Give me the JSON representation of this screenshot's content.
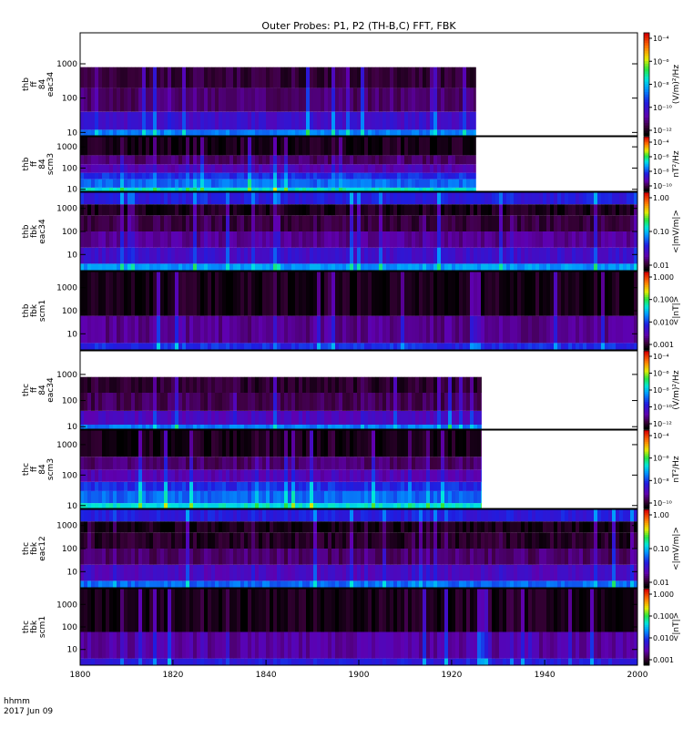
{
  "title": "Outer Probes: P1, P2 (TH-B,C) FFT, FBK",
  "time_axis": {
    "tick_labels": [
      "1800",
      "1820",
      "1840",
      "1900",
      "1920",
      "1940",
      "2000"
    ],
    "tick_hours": [
      18.0,
      18.333,
      18.667,
      19.0,
      19.333,
      19.667,
      20.0
    ],
    "range_hours": [
      18.0,
      20.0
    ],
    "unit_label": "hhmm",
    "date_label": "2017 Jun 09"
  },
  "chart_data": [
    {
      "type": "heatmap",
      "panel": "thb_ff_eac34",
      "ylabel": [
        "thb",
        "ff",
        "84",
        "eac34"
      ],
      "yscale": "log",
      "ylim": [
        8,
        8000
      ],
      "y_ticks": [
        10,
        100,
        1000
      ],
      "y_tick_labels": [
        "10",
        "100",
        "1000"
      ],
      "data_end_hour": 19.42,
      "bands": [
        {
          "f": [
            8,
            12
          ],
          "lvl": 0.42
        },
        {
          "f": [
            12,
            40
          ],
          "lvl": 0.25
        },
        {
          "f": [
            40,
            200
          ],
          "lvl": 0.12
        },
        {
          "f": [
            200,
            800
          ],
          "lvl": 0.07
        }
      ],
      "colorbar": {
        "label": "(V/m)²/Hz",
        "tick_labels": [
          "10⁻⁴",
          "10⁻⁶",
          "10⁻⁸",
          "10⁻¹⁰",
          "10⁻¹²"
        ]
      }
    },
    {
      "type": "heatmap",
      "panel": "thb_ff_scm3",
      "ylabel": [
        "thb",
        "ff",
        "84",
        "scm3"
      ],
      "yscale": "log",
      "ylim": [
        8,
        3000
      ],
      "y_ticks": [
        10,
        100,
        1000
      ],
      "y_tick_labels": [
        "10",
        "100",
        "1000"
      ],
      "data_end_hour": 19.42,
      "bands": [
        {
          "f": [
            8,
            12
          ],
          "lvl": 0.55
        },
        {
          "f": [
            12,
            30
          ],
          "lvl": 0.4
        },
        {
          "f": [
            30,
            60
          ],
          "lvl": 0.33
        },
        {
          "f": [
            60,
            150
          ],
          "lvl": 0.2
        },
        {
          "f": [
            150,
            400
          ],
          "lvl": 0.12
        },
        {
          "f": [
            400,
            3000
          ],
          "lvl": 0.03
        }
      ],
      "colorbar": {
        "label": "nT²/Hz",
        "tick_labels": [
          "10⁻⁴",
          "10⁻⁶",
          "10⁻⁸",
          "10⁻¹⁰"
        ]
      }
    },
    {
      "type": "heatmap",
      "panel": "thb_fbk_eac34",
      "ylabel": [
        "thb",
        "fbk",
        "eac34"
      ],
      "yscale": "log",
      "ylim": [
        2,
        5000
      ],
      "y_ticks": [
        10,
        100,
        1000
      ],
      "y_tick_labels": [
        "10",
        "100",
        "1000"
      ],
      "data_end_hour": 20.0,
      "bands": [
        {
          "f": [
            2,
            4
          ],
          "lvl": 0.45
        },
        {
          "f": [
            4,
            20
          ],
          "lvl": 0.25
        },
        {
          "f": [
            20,
            100
          ],
          "lvl": 0.16
        },
        {
          "f": [
            100,
            500
          ],
          "lvl": 0.08
        },
        {
          "f": [
            500,
            1500
          ],
          "lvl": 0.03
        },
        {
          "f": [
            1500,
            5000
          ],
          "lvl": 0.3
        }
      ],
      "colorbar": {
        "label": "<|mV/m|>",
        "tick_labels": [
          "1.00",
          "0.10",
          "0.01"
        ]
      }
    },
    {
      "type": "heatmap",
      "panel": "thb_fbk_scm1",
      "ylabel": [
        "thb",
        "fbk",
        "scm1"
      ],
      "yscale": "log",
      "ylim": [
        2,
        5000
      ],
      "y_ticks": [
        10,
        100,
        1000
      ],
      "y_tick_labels": [
        "10",
        "100",
        "1000"
      ],
      "data_end_hour": 20.0,
      "bands": [
        {
          "f": [
            2,
            4
          ],
          "lvl": 0.33
        },
        {
          "f": [
            4,
            60
          ],
          "lvl": 0.15
        },
        {
          "f": [
            60,
            5000
          ],
          "lvl": 0.03
        }
      ],
      "colorbar": {
        "label": "<|nT|>",
        "tick_labels": [
          "1.000",
          "0.100",
          "0.010",
          "0.001"
        ]
      }
    },
    {
      "type": "heatmap",
      "panel": "thc_ff_eac34",
      "ylabel": [
        "thc",
        "ff",
        "84",
        "eac34"
      ],
      "yscale": "log",
      "ylim": [
        8,
        8000
      ],
      "y_ticks": [
        10,
        100,
        1000
      ],
      "y_tick_labels": [
        "10",
        "100",
        "1000"
      ],
      "data_end_hour": 19.44,
      "bands": [
        {
          "f": [
            8,
            12
          ],
          "lvl": 0.42
        },
        {
          "f": [
            12,
            40
          ],
          "lvl": 0.22
        },
        {
          "f": [
            40,
            200
          ],
          "lvl": 0.1
        },
        {
          "f": [
            200,
            800
          ],
          "lvl": 0.06
        }
      ],
      "colorbar": {
        "label": "(V/m)²/Hz",
        "tick_labels": [
          "10⁻⁴",
          "10⁻⁶",
          "10⁻⁸",
          "10⁻¹⁰",
          "10⁻¹²"
        ]
      }
    },
    {
      "type": "heatmap",
      "panel": "thc_ff_scm3",
      "ylabel": [
        "thc",
        "ff",
        "84",
        "scm3"
      ],
      "yscale": "log",
      "ylim": [
        8,
        3000
      ],
      "y_ticks": [
        10,
        100,
        1000
      ],
      "y_tick_labels": [
        "10",
        "100",
        "1000"
      ],
      "data_end_hour": 19.44,
      "bands": [
        {
          "f": [
            8,
            12
          ],
          "lvl": 0.55
        },
        {
          "f": [
            12,
            30
          ],
          "lvl": 0.4
        },
        {
          "f": [
            30,
            60
          ],
          "lvl": 0.33
        },
        {
          "f": [
            60,
            150
          ],
          "lvl": 0.2
        },
        {
          "f": [
            150,
            400
          ],
          "lvl": 0.12
        },
        {
          "f": [
            400,
            3000
          ],
          "lvl": 0.03
        }
      ],
      "colorbar": {
        "label": "nT²/Hz",
        "tick_labels": [
          "10⁻⁴",
          "10⁻⁶",
          "10⁻⁸",
          "10⁻¹⁰"
        ]
      }
    },
    {
      "type": "heatmap",
      "panel": "thc_fbk_eac12",
      "ylabel": [
        "thc",
        "fbk",
        "eac12"
      ],
      "yscale": "log",
      "ylim": [
        2,
        5000
      ],
      "y_ticks": [
        10,
        100,
        1000
      ],
      "y_tick_labels": [
        "10",
        "100",
        "1000"
      ],
      "data_end_hour": 20.0,
      "bands": [
        {
          "f": [
            2,
            4
          ],
          "lvl": 0.4
        },
        {
          "f": [
            4,
            20
          ],
          "lvl": 0.22
        },
        {
          "f": [
            20,
            100
          ],
          "lvl": 0.12
        },
        {
          "f": [
            100,
            500
          ],
          "lvl": 0.05
        },
        {
          "f": [
            500,
            1500
          ],
          "lvl": 0.03
        },
        {
          "f": [
            1500,
            5000
          ],
          "lvl": 0.3
        }
      ],
      "colorbar": {
        "label": "<|mV/m|>",
        "tick_labels": [
          "1.00",
          "0.10",
          "0.01"
        ]
      }
    },
    {
      "type": "heatmap",
      "panel": "thc_fbk_scm1",
      "ylabel": [
        "thc",
        "fbk",
        "scm1"
      ],
      "yscale": "log",
      "ylim": [
        2,
        5000
      ],
      "y_ticks": [
        10,
        100,
        1000
      ],
      "y_tick_labels": [
        "10",
        "100",
        "1000"
      ],
      "data_end_hour": 20.0,
      "bands": [
        {
          "f": [
            2,
            4
          ],
          "lvl": 0.3
        },
        {
          "f": [
            4,
            60
          ],
          "lvl": 0.17
        },
        {
          "f": [
            60,
            5000
          ],
          "lvl": 0.03
        }
      ],
      "colorbar": {
        "label": "<|nT|>",
        "tick_labels": [
          "1.000",
          "0.100",
          "0.010",
          "0.001"
        ]
      }
    }
  ]
}
